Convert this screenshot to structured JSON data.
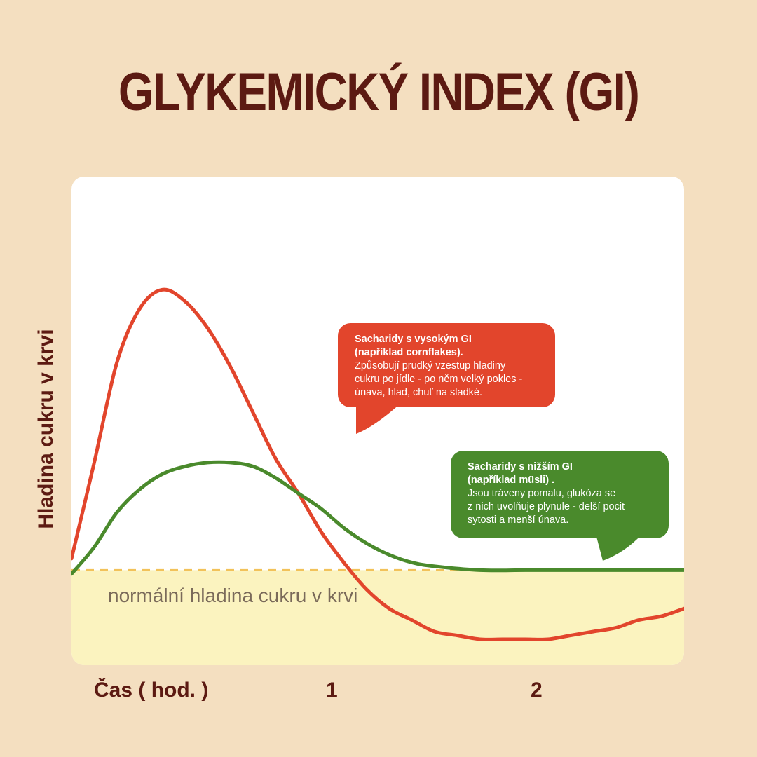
{
  "title": "GLYKEMICKÝ INDEX (GI)",
  "colors": {
    "background": "#f4dfc0",
    "title": "#5c1a12",
    "high_gi": "#e2452c",
    "low_gi": "#4a8a2c",
    "normal_band": "#fbf3bf",
    "normal_line": "#f2c25a"
  },
  "chart_data": {
    "type": "line",
    "title": "GLYKEMICKÝ INDEX (GI)",
    "xlabel": "Čas ( hod. )",
    "ylabel": "Hladina cukru v krvi",
    "x_ticks": [
      "1",
      "2"
    ],
    "xlim": [
      0,
      2.7
    ],
    "ylim": [
      0,
      1
    ],
    "grid": false,
    "normal_level_label": "normální hladina cukru v krvi",
    "normal_level": 0.18,
    "series": [
      {
        "name": "Sacharidy s vysokým GI",
        "color": "#e2452c",
        "points": [
          [
            0,
            0.21
          ],
          [
            0.1,
            0.46
          ],
          [
            0.2,
            0.72
          ],
          [
            0.3,
            0.86
          ],
          [
            0.4,
            0.91
          ],
          [
            0.5,
            0.88
          ],
          [
            0.6,
            0.81
          ],
          [
            0.7,
            0.71
          ],
          [
            0.8,
            0.59
          ],
          [
            0.9,
            0.47
          ],
          [
            1.0,
            0.38
          ],
          [
            1.1,
            0.28
          ],
          [
            1.2,
            0.2
          ],
          [
            1.3,
            0.13
          ],
          [
            1.4,
            0.08
          ],
          [
            1.5,
            0.05
          ],
          [
            1.6,
            0.02
          ],
          [
            1.7,
            0.01
          ],
          [
            1.8,
            0.0
          ],
          [
            1.9,
            0.0
          ],
          [
            2.0,
            0.0
          ],
          [
            2.1,
            0.0
          ],
          [
            2.2,
            0.01
          ],
          [
            2.3,
            0.02
          ],
          [
            2.4,
            0.03
          ],
          [
            2.5,
            0.05
          ],
          [
            2.6,
            0.06
          ],
          [
            2.7,
            0.08
          ]
        ]
      },
      {
        "name": "Sacharidy s nižším GI",
        "color": "#4a8a2c",
        "points": [
          [
            0,
            0.17
          ],
          [
            0.1,
            0.24
          ],
          [
            0.2,
            0.33
          ],
          [
            0.3,
            0.39
          ],
          [
            0.4,
            0.43
          ],
          [
            0.5,
            0.45
          ],
          [
            0.6,
            0.46
          ],
          [
            0.7,
            0.46
          ],
          [
            0.8,
            0.45
          ],
          [
            0.9,
            0.42
          ],
          [
            1.0,
            0.38
          ],
          [
            1.1,
            0.34
          ],
          [
            1.2,
            0.29
          ],
          [
            1.3,
            0.25
          ],
          [
            1.4,
            0.22
          ],
          [
            1.5,
            0.2
          ],
          [
            1.6,
            0.19
          ],
          [
            1.8,
            0.18
          ],
          [
            2.0,
            0.18
          ],
          [
            2.2,
            0.18
          ],
          [
            2.4,
            0.18
          ],
          [
            2.7,
            0.18
          ]
        ]
      }
    ]
  },
  "bubbles": {
    "high": {
      "heading_line1": "Sacharidy s vysokým GI",
      "heading_line2": "(například cornflakes).",
      "body_line1": "Způsobují prudký vzestup hladiny",
      "body_line2": "cukru po jídle - po něm velký pokles -",
      "body_line3": "únava, hlad, chuť na sladké."
    },
    "low": {
      "heading_line1": "Sacharidy s nižším GI",
      "heading_line2": "(například müsli) .",
      "body_line1": "Jsou tráveny pomalu, glukóza se",
      "body_line2": "z nich uvolňuje plynule - delší pocit",
      "body_line3": "sytosti a menší únava."
    }
  }
}
